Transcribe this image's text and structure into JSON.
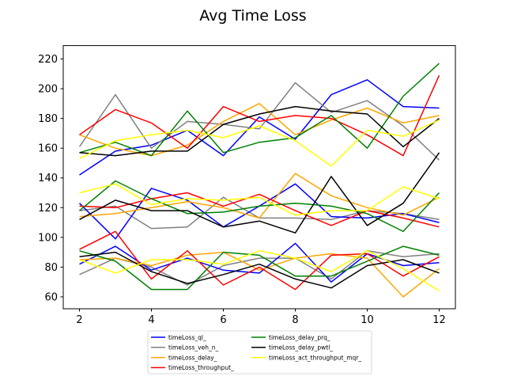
{
  "chart_data": {
    "type": "line",
    "title": "Avg Time Loss",
    "xlabel": "",
    "ylabel": "",
    "x": [
      2,
      3,
      4,
      5,
      6,
      7,
      8,
      9,
      10,
      11,
      12
    ],
    "xlim": [
      1.55,
      12.45
    ],
    "ylim": [
      52,
      229
    ],
    "xticks": [
      2,
      4,
      6,
      8,
      10,
      12
    ],
    "yticks": [
      60,
      80,
      100,
      120,
      140,
      160,
      180,
      200,
      220
    ],
    "grid": false,
    "legend": {
      "placement": "bottom-center",
      "columns": 2
    },
    "series": [
      {
        "name": "timeLoss_ql_",
        "color": "#0000ff",
        "groups": [
          [
            142,
            158,
            162,
            172,
            155,
            181,
            166,
            196,
            206,
            188,
            187
          ],
          [
            123,
            99,
            133,
            125,
            107,
            121,
            136,
            114,
            113,
            116,
            110
          ],
          [
            82,
            94,
            78,
            86,
            78,
            76,
            96,
            70,
            89,
            81,
            83
          ]
        ]
      },
      {
        "name": "timeLoss_veh_n_",
        "color": "#808080",
        "groups": [
          [
            161,
            196,
            160,
            178,
            176,
            173,
            204,
            184,
            192,
            175,
            152
          ]
        ]
      },
      {
        "name": "timeLoss_delay_",
        "color": "#ffa500",
        "groups": [
          [
            169,
            160,
            155,
            162,
            178,
            190,
            169,
            179,
            187,
            177,
            182
          ],
          [
            114,
            116,
            120,
            124,
            120,
            113,
            143,
            128,
            120,
            115,
            127
          ],
          [
            85,
            86,
            81,
            88,
            90,
            78,
            86,
            89,
            86,
            60,
            79
          ]
        ]
      },
      {
        "name": "timeLoss_throughput_",
        "color": "#ff0000",
        "groups": [
          [
            169,
            186,
            177,
            160,
            188,
            178,
            182,
            180,
            169,
            155,
            209
          ],
          [
            121,
            120,
            126,
            130,
            121,
            129,
            118,
            108,
            118,
            113,
            107
          ],
          [
            92,
            104,
            72,
            91,
            68,
            80,
            65,
            88,
            89,
            74,
            87
          ]
        ]
      },
      {
        "name": "timeLoss_delay_prq_",
        "color": "#008000",
        "groups": [
          [
            157,
            164,
            155,
            185,
            157,
            164,
            167,
            182,
            160,
            195,
            217
          ],
          [
            118,
            138,
            126,
            116,
            117,
            121,
            123,
            121,
            116,
            104,
            130
          ],
          [
            91,
            84,
            65,
            65,
            90,
            88,
            74,
            74,
            84,
            94,
            88
          ]
        ]
      },
      {
        "name": "timeLoss_delay_pwtl_",
        "color": "#000000",
        "groups": [
          [
            157,
            155,
            158,
            158,
            176,
            183,
            188,
            185,
            183,
            161,
            180
          ],
          [
            112,
            125,
            118,
            118,
            107,
            111,
            103,
            141,
            108,
            123,
            157
          ],
          [
            87,
            90,
            77,
            69,
            75,
            82,
            72,
            66,
            81,
            85,
            76
          ]
        ]
      },
      {
        "name": "timeLoss_act_throughput_mqr_",
        "color": "#ffff00",
        "groups": [
          [
            153,
            165,
            169,
            172,
            167,
            175,
            165,
            148,
            172,
            168,
            179
          ],
          [
            130,
            136,
            122,
            126,
            125,
            127,
            115,
            118,
            118,
            134,
            126
          ],
          [
            85,
            76,
            85,
            85,
            82,
            91,
            86,
            77,
            91,
            79,
            64
          ]
        ]
      }
    ],
    "extra_lines": [
      {
        "color": "#808080",
        "values": [
          118,
          121,
          106,
          107,
          127,
          113,
          113,
          112,
          118,
          116,
          112
        ]
      },
      {
        "color": "#808080",
        "values": [
          75,
          86,
          80,
          68,
          81,
          86,
          86,
          72,
          91,
          87,
          89
        ]
      }
    ]
  }
}
